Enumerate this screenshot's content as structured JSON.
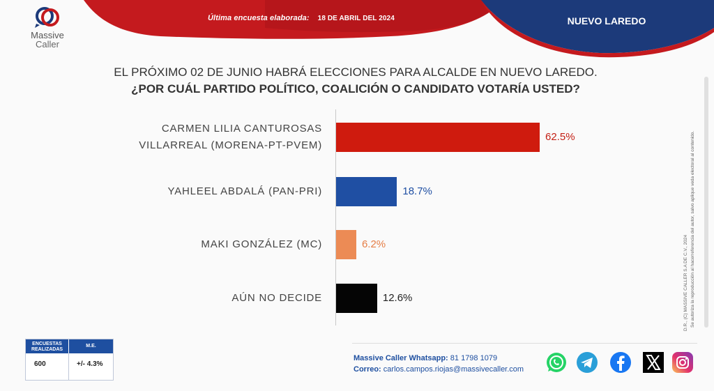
{
  "header": {
    "brand_line1": "Massive",
    "brand_line2": "Caller",
    "date_label": "Última encuesta elaborada:",
    "date_value": "18 DE ABRIL DEL 2024",
    "city": "NUEVO LAREDO"
  },
  "question": {
    "line1": "EL PRÓXIMO 02 DE JUNIO HABRÁ ELECCIONES PARA ALCALDE EN NUEVO LAREDO.",
    "line2": "¿POR CUÁL PARTIDO POLÍTICO, COALICIÓN O CANDIDATO VOTARÍA USTED?"
  },
  "chart_data": {
    "type": "bar",
    "orientation": "horizontal",
    "title": "",
    "xlabel": "",
    "ylabel": "",
    "xlim": [
      0,
      100
    ],
    "grid": false,
    "categories": [
      [
        "CARMEN LILIA CANTUROSAS",
        "VILLARREAL (MORENA-PT-PVEM)"
      ],
      [
        "YAHLEEL ABDALÁ (PAN-PRI)"
      ],
      [
        "MAKI GONZÁLEZ (MC)"
      ],
      [
        "AÚN NO DECIDE"
      ]
    ],
    "values": [
      62.5,
      18.7,
      6.2,
      12.6
    ],
    "value_labels": [
      "62.5%",
      "18.7%",
      "6.2%",
      "12.6%"
    ],
    "bar_colors": [
      "#cf1b0e",
      "#1f4fa3",
      "#ec8b55",
      "#050505"
    ],
    "label_colors": [
      "#c41f14",
      "#1f4fa3",
      "#e57d45",
      "#222222"
    ]
  },
  "rights": {
    "line1": "D.R., (C) MASSIVE CALLER S.A DE C.V., 2024",
    "line2": "Se autoriza la reproducción al hacerreferencia del autor, salvo aplique veda electoral al contenido."
  },
  "stats": {
    "col1_header": "ENCUESTAS REALIZADAS",
    "col2_header": "M.E.",
    "col1_value": "600",
    "col2_value": "+/- 4.3%"
  },
  "contact": {
    "whatsapp_label": "Massive Caller Whatsapp:",
    "whatsapp_value": "81 1798 1079",
    "email_label": "Correo:",
    "email_value": "carlos.campos.riojas@massivecaller.com"
  },
  "social_icons": [
    "whatsapp-icon",
    "telegram-icon",
    "facebook-icon",
    "x-icon",
    "instagram-icon"
  ],
  "colors": {
    "red": "#c41a1e",
    "navy": "#1c3a7a",
    "brand_blue": "#1e4fa0"
  }
}
